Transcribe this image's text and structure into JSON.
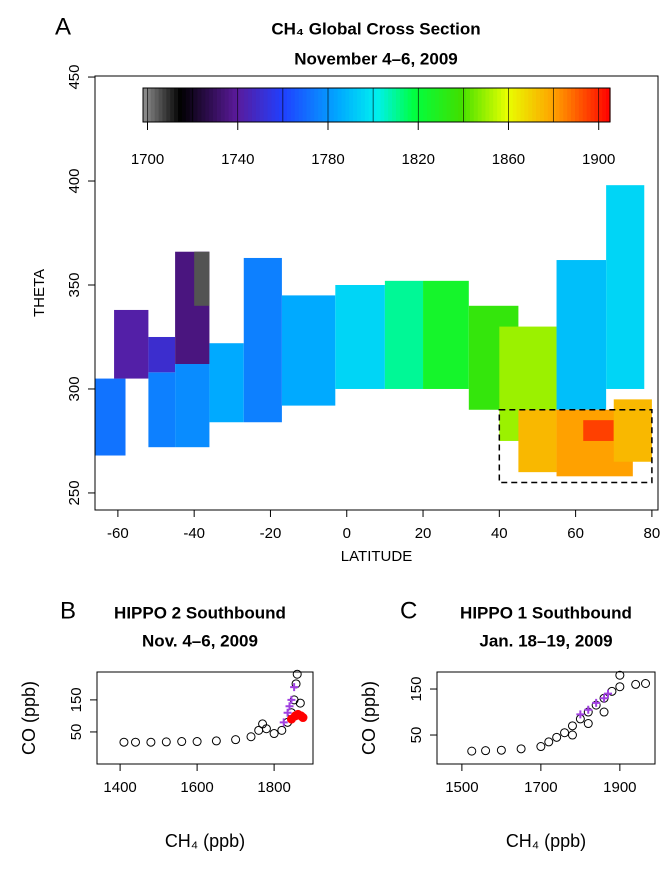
{
  "chart_data": [
    {
      "type": "heatmap",
      "panel": "A",
      "title": "CH₄ Global Cross Section",
      "subtitle": "November 4–6, 2009",
      "xlabel": "LATITUDE",
      "ylabel": "THETA",
      "xlim": [
        -66,
        81.6
      ],
      "ylim": [
        241.8,
        450.5
      ],
      "xticks": [
        -60,
        -40,
        -20,
        0,
        20,
        40,
        60,
        80
      ],
      "yticks": [
        250,
        300,
        350,
        400,
        450
      ],
      "colorbar": {
        "lim": [
          1698,
          1905
        ],
        "ticks": [
          1700,
          1740,
          1780,
          1820,
          1860,
          1900
        ]
      },
      "highlight_box": {
        "xlim": [
          40,
          80
        ],
        "ylim": [
          255,
          290
        ]
      },
      "cells": [
        {
          "lat": [
            -66,
            -58
          ],
          "theta": [
            268,
            305
          ],
          "value": 1772
        },
        {
          "lat": [
            -61,
            -52
          ],
          "theta": [
            305,
            338
          ],
          "value": 1742
        },
        {
          "lat": [
            -52,
            -45
          ],
          "theta": [
            272,
            308
          ],
          "value": 1775
        },
        {
          "lat": [
            -52,
            -45
          ],
          "theta": [
            308,
            325
          ],
          "value": 1750
        },
        {
          "lat": [
            -45,
            -36
          ],
          "theta": [
            272,
            312
          ],
          "value": 1778
        },
        {
          "lat": [
            -45,
            -36
          ],
          "theta": [
            312,
            366
          ],
          "value": 1735
        },
        {
          "lat": [
            -40,
            -36
          ],
          "theta": [
            340,
            366
          ],
          "value": 1705
        },
        {
          "lat": [
            -36,
            -27
          ],
          "theta": [
            284,
            322
          ],
          "value": 1785
        },
        {
          "lat": [
            -27,
            -17
          ],
          "theta": [
            284,
            363
          ],
          "value": 1775
        },
        {
          "lat": [
            -17,
            -3
          ],
          "theta": [
            292,
            345
          ],
          "value": 1785
        },
        {
          "lat": [
            -3,
            10
          ],
          "theta": [
            300,
            350
          ],
          "value": 1795
        },
        {
          "lat": [
            10,
            20
          ],
          "theta": [
            300,
            352
          ],
          "value": 1810
        },
        {
          "lat": [
            20,
            32
          ],
          "theta": [
            300,
            352
          ],
          "value": 1825
        },
        {
          "lat": [
            32,
            45
          ],
          "theta": [
            290,
            340
          ],
          "value": 1835
        },
        {
          "lat": [
            40,
            55
          ],
          "theta": [
            275,
            330
          ],
          "value": 1850
        },
        {
          "lat": [
            45,
            55
          ],
          "theta": [
            260,
            290
          ],
          "value": 1875
        },
        {
          "lat": [
            55,
            68
          ],
          "theta": [
            290,
            362
          ],
          "value": 1790
        },
        {
          "lat": [
            55,
            75
          ],
          "theta": [
            258,
            290
          ],
          "value": 1880
        },
        {
          "lat": [
            62,
            70
          ],
          "theta": [
            275,
            285
          ],
          "value": 1895
        },
        {
          "lat": [
            68,
            78
          ],
          "theta": [
            300,
            398
          ],
          "value": 1795
        },
        {
          "lat": [
            70,
            80
          ],
          "theta": [
            265,
            295
          ],
          "value": 1875
        }
      ]
    },
    {
      "type": "scatter",
      "panel": "B",
      "title": "HIPPO 2 Southbound",
      "subtitle": "Nov. 4–6, 2009",
      "xlabel": "CH₄ (ppb)",
      "ylabel": "CO (ppb)",
      "xlim": [
        1340,
        1901
      ],
      "ylim": [
        -50,
        237
      ],
      "xticks": [
        1400,
        1600,
        1800
      ],
      "yticks": [
        50,
        150
      ],
      "series": [
        {
          "color": "#000000",
          "marker": "circle",
          "x": [
            1410,
            1440,
            1480,
            1520,
            1560,
            1600,
            1650,
            1700,
            1740,
            1760,
            1770,
            1780,
            1800,
            1820,
            1835,
            1845,
            1852,
            1857,
            1860,
            1868
          ],
          "values": [
            18,
            18,
            18,
            19,
            20,
            20,
            22,
            26,
            35,
            55,
            75,
            60,
            45,
            55,
            80,
            110,
            150,
            200,
            230,
            140
          ]
        },
        {
          "color": "#a040e0",
          "marker": "cross",
          "x": [
            1825,
            1835,
            1840,
            1845,
            1852
          ],
          "values": [
            80,
            110,
            130,
            150,
            190
          ]
        },
        {
          "color": "#ff0000",
          "marker": "dot",
          "x": [
            1845,
            1855,
            1862,
            1870,
            1875
          ],
          "values": [
            90,
            100,
            105,
            100,
            95
          ]
        }
      ]
    },
    {
      "type": "scatter",
      "panel": "C",
      "title": "HIPPO 1 Southbound",
      "subtitle": "Jan. 18–19, 2009",
      "xlabel": "CH₄ (ppb)",
      "ylabel": "CO (ppb)",
      "xlim": [
        1437,
        1989
      ],
      "ylim": [
        -13,
        187
      ],
      "xticks": [
        1500,
        1700,
        1900
      ],
      "yticks": [
        50,
        150
      ],
      "series": [
        {
          "color": "#000000",
          "marker": "circle",
          "x": [
            1525,
            1560,
            1600,
            1650,
            1700,
            1720,
            1740,
            1760,
            1780,
            1800,
            1820,
            1840,
            1860,
            1880,
            1900,
            1940,
            1965,
            1900,
            1780,
            1820,
            1860
          ],
          "values": [
            15,
            16,
            17,
            20,
            25,
            35,
            45,
            55,
            70,
            85,
            100,
            115,
            130,
            145,
            155,
            160,
            162,
            180,
            50,
            75,
            100
          ]
        },
        {
          "color": "#a040e0",
          "marker": "cross",
          "x": [
            1800,
            1820,
            1840,
            1860,
            1870
          ],
          "values": [
            95,
            105,
            120,
            130,
            140
          ]
        }
      ]
    }
  ]
}
